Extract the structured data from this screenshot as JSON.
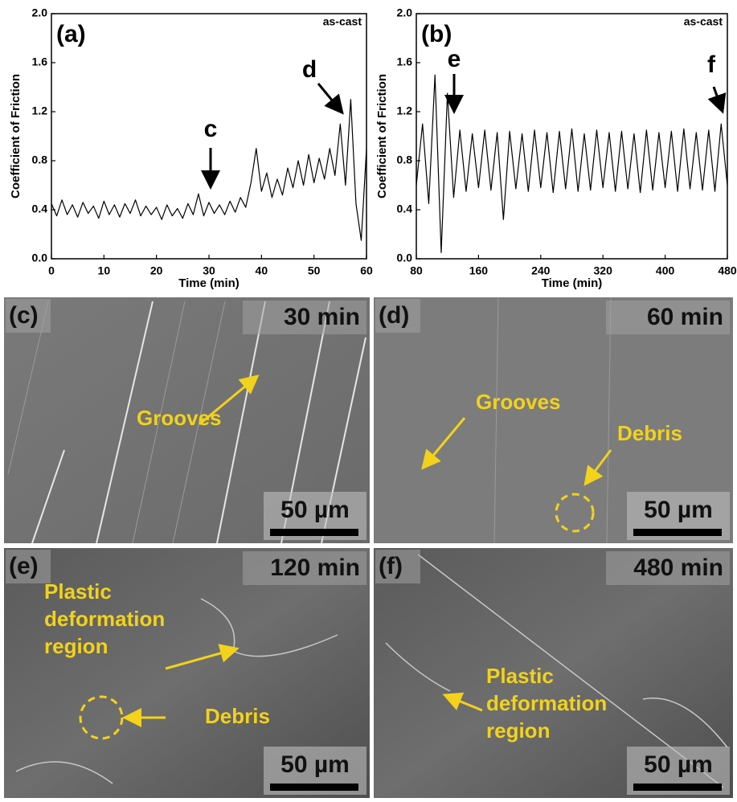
{
  "chart_data": [
    {
      "type": "line",
      "panel": "(a)",
      "note": "as-cast",
      "xlabel": "Time (min)",
      "ylabel": "Coefficient of Friction",
      "annotations": [
        "c",
        "d"
      ],
      "color": "#000000",
      "xlim": [
        0,
        60
      ],
      "xticks": [
        0,
        10,
        20,
        30,
        40,
        50,
        60
      ],
      "ylim": [
        0,
        2
      ],
      "yticks": [
        {
          "value": 0,
          "label": "0.0"
        },
        0.4,
        0.8,
        1.2,
        1.6,
        {
          "value": 2,
          "label": "2.0"
        }
      ],
      "x": [
        0,
        1,
        2,
        3,
        4,
        5,
        6,
        7,
        8,
        9,
        10,
        11,
        12,
        13,
        14,
        15,
        16,
        17,
        18,
        19,
        20,
        21,
        22,
        23,
        24,
        25,
        26,
        27,
        28,
        29,
        30,
        31,
        32,
        33,
        34,
        35,
        36,
        37,
        38,
        39,
        40,
        41,
        42,
        43,
        44,
        45,
        46,
        47,
        48,
        49,
        50,
        51,
        52,
        53,
        54,
        55,
        56,
        57,
        58,
        59,
        60
      ],
      "values": [
        0.45,
        0.35,
        0.48,
        0.36,
        0.44,
        0.34,
        0.46,
        0.37,
        0.43,
        0.33,
        0.47,
        0.36,
        0.44,
        0.34,
        0.45,
        0.37,
        0.48,
        0.35,
        0.43,
        0.36,
        0.42,
        0.32,
        0.44,
        0.35,
        0.41,
        0.33,
        0.45,
        0.36,
        0.53,
        0.35,
        0.46,
        0.37,
        0.44,
        0.36,
        0.47,
        0.38,
        0.5,
        0.42,
        0.62,
        0.9,
        0.55,
        0.7,
        0.5,
        0.65,
        0.52,
        0.74,
        0.58,
        0.8,
        0.6,
        0.85,
        0.62,
        0.82,
        0.65,
        0.9,
        0.68,
        1.1,
        0.6,
        1.3,
        0.45,
        0.15,
        0.9
      ]
    },
    {
      "type": "line",
      "panel": "(b)",
      "note": "as-cast",
      "xlabel": "Time (min)",
      "ylabel": "Coefficient of Friction",
      "annotations": [
        "e",
        "f"
      ],
      "color": "#000000",
      "xlim": [
        80,
        480
      ],
      "xticks": [
        80,
        160,
        240,
        320,
        400,
        480
      ],
      "ylim": [
        0,
        2
      ],
      "yticks": [
        {
          "value": 0,
          "label": "0.0"
        },
        0.4,
        0.8,
        1.2,
        1.6,
        {
          "value": 2,
          "label": "2.0"
        }
      ],
      "x": [
        80,
        88,
        96,
        104,
        112,
        120,
        128,
        136,
        144,
        152,
        160,
        168,
        176,
        184,
        192,
        200,
        208,
        216,
        224,
        232,
        240,
        248,
        256,
        264,
        272,
        280,
        288,
        296,
        304,
        312,
        320,
        328,
        336,
        344,
        352,
        360,
        368,
        376,
        384,
        392,
        400,
        408,
        416,
        424,
        432,
        440,
        448,
        456,
        464,
        472,
        480
      ],
      "values": [
        0.6,
        1.1,
        0.45,
        1.5,
        0.05,
        1.35,
        0.5,
        1.05,
        0.55,
        1.02,
        0.58,
        1.05,
        0.56,
        1.03,
        0.32,
        1.04,
        0.57,
        1.02,
        0.55,
        1.05,
        0.58,
        1.03,
        0.54,
        1.04,
        0.57,
        1.06,
        0.55,
        1.02,
        0.56,
        1.05,
        0.58,
        1.03,
        0.55,
        1.04,
        0.57,
        1.02,
        0.54,
        1.05,
        0.56,
        1.03,
        0.58,
        1.04,
        0.55,
        1.06,
        0.57,
        1.03,
        0.56,
        1.05,
        0.55,
        1.1,
        0.6
      ]
    }
  ],
  "panels": [
    {
      "label": "(c)",
      "time": "30 min",
      "scale_bar": "50 µm",
      "annotations": [
        {
          "lines": [
            "Grooves"
          ]
        }
      ]
    },
    {
      "label": "(d)",
      "time": "60 min",
      "scale_bar": "50 µm",
      "annotations": [
        {
          "lines": [
            "Grooves"
          ]
        },
        {
          "lines": [
            "Debris"
          ]
        }
      ]
    },
    {
      "label": "(e)",
      "time": "120 min",
      "scale_bar": "50 µm",
      "annotations": [
        {
          "lines": [
            "Plastic",
            "deformation",
            "region"
          ]
        },
        {
          "lines": [
            "Debris"
          ]
        }
      ]
    },
    {
      "label": "(f)",
      "time": "480 min",
      "scale_bar": "50 µm",
      "annotations": [
        {
          "lines": [
            "Plastic",
            "deformation",
            "region"
          ]
        }
      ]
    }
  ]
}
